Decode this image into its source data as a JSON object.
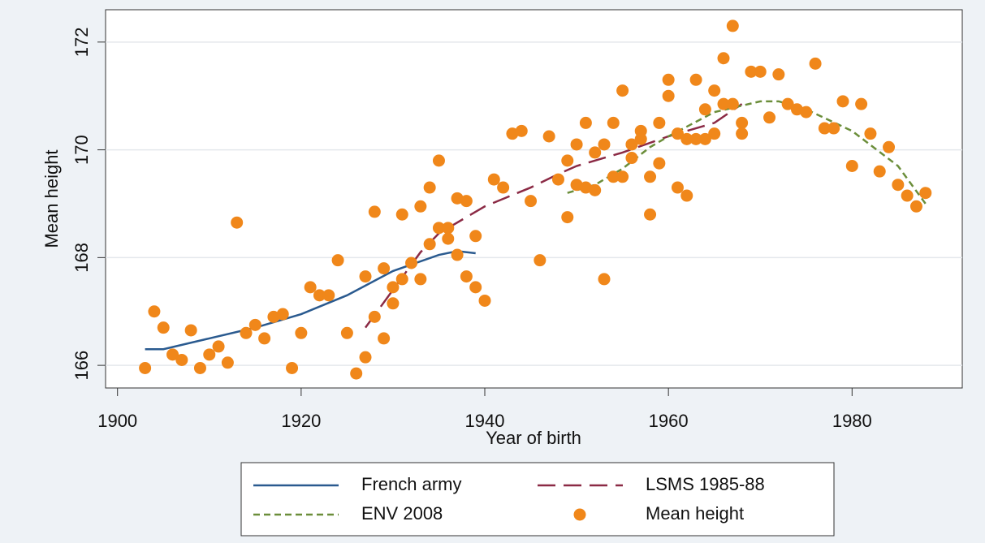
{
  "chart_data": {
    "type": "scatter",
    "x_label": "Year of birth",
    "y_label": "Mean height",
    "xlim": [
      1898.7,
      1992.0
    ],
    "ylim": [
      165.58,
      172.6
    ],
    "xticks": [
      1900,
      1920,
      1940,
      1960,
      1980
    ],
    "yticks": [
      166,
      168,
      170,
      172
    ],
    "grid": true,
    "legend": "bottom",
    "series": [
      {
        "name": "French army",
        "type": "line",
        "dash": "solid",
        "color": "#2a5a8f",
        "x": [
          1903,
          1905,
          1910,
          1915,
          1920,
          1925,
          1930,
          1935,
          1937,
          1939
        ],
        "values": [
          166.3,
          166.3,
          166.5,
          166.7,
          166.95,
          167.3,
          167.75,
          168.05,
          168.12,
          168.08
        ]
      },
      {
        "name": "LSMS 1985-88",
        "type": "line",
        "dash": "long",
        "color": "#8b2a45",
        "x": [
          1927,
          1930,
          1933,
          1935,
          1940,
          1945,
          1948,
          1950,
          1955,
          1960,
          1965,
          1968
        ],
        "values": [
          166.7,
          167.4,
          168.1,
          168.45,
          168.95,
          169.3,
          169.55,
          169.7,
          169.95,
          170.25,
          170.5,
          170.85
        ]
      },
      {
        "name": "ENV 2008",
        "type": "line",
        "dash": "short",
        "color": "#6b8e3a",
        "x": [
          1949,
          1952,
          1955,
          1958,
          1960,
          1965,
          1970,
          1972,
          1975,
          1980,
          1985,
          1988
        ],
        "values": [
          169.2,
          169.35,
          169.65,
          170.05,
          170.25,
          170.7,
          170.9,
          170.9,
          170.75,
          170.35,
          169.7,
          169.0
        ]
      },
      {
        "name": "Mean height",
        "type": "scatter",
        "color": "#f0871a",
        "x": [
          1903,
          1904,
          1905,
          1906,
          1907,
          1908,
          1909,
          1910,
          1911,
          1912,
          1913,
          1914,
          1915,
          1916,
          1917,
          1918,
          1919,
          1920,
          1921,
          1922,
          1923,
          1924,
          1925,
          1926,
          1927,
          1927,
          1928,
          1928,
          1929,
          1929,
          1930,
          1930,
          1931,
          1931,
          1932,
          1933,
          1933,
          1934,
          1934,
          1935,
          1935,
          1936,
          1936,
          1937,
          1937,
          1938,
          1938,
          1939,
          1939,
          1940,
          1941,
          1942,
          1943,
          1944,
          1945,
          1946,
          1947,
          1948,
          1949,
          1949,
          1950,
          1950,
          1951,
          1951,
          1952,
          1952,
          1953,
          1953,
          1954,
          1954,
          1955,
          1955,
          1956,
          1956,
          1957,
          1957,
          1958,
          1958,
          1959,
          1959,
          1960,
          1960,
          1961,
          1961,
          1962,
          1962,
          1963,
          1963,
          1964,
          1964,
          1965,
          1965,
          1966,
          1966,
          1967,
          1967,
          1968,
          1968,
          1969,
          1970,
          1971,
          1972,
          1973,
          1974,
          1975,
          1976,
          1977,
          1978,
          1979,
          1980,
          1981,
          1982,
          1983,
          1984,
          1985,
          1986,
          1987,
          1988
        ],
        "values": [
          165.95,
          167.0,
          166.7,
          166.2,
          166.1,
          166.65,
          165.95,
          166.2,
          166.35,
          166.05,
          168.65,
          166.6,
          166.75,
          166.5,
          166.9,
          166.95,
          165.95,
          166.6,
          167.45,
          167.3,
          167.3,
          167.95,
          166.6,
          165.85,
          166.15,
          167.65,
          166.9,
          168.85,
          167.8,
          166.5,
          167.15,
          167.45,
          168.8,
          167.6,
          167.9,
          167.6,
          168.95,
          169.3,
          168.25,
          169.8,
          168.55,
          168.55,
          168.35,
          169.1,
          168.05,
          169.05,
          167.65,
          168.4,
          167.45,
          167.2,
          169.45,
          169.3,
          170.3,
          170.35,
          169.05,
          167.95,
          170.25,
          169.45,
          169.8,
          168.75,
          170.1,
          169.35,
          170.5,
          169.3,
          169.95,
          169.25,
          170.1,
          167.6,
          170.5,
          169.5,
          171.1,
          169.5,
          170.1,
          169.85,
          170.35,
          170.2,
          169.5,
          168.8,
          170.5,
          169.75,
          171.3,
          171.0,
          170.3,
          169.3,
          170.2,
          169.15,
          171.3,
          170.2,
          170.2,
          170.75,
          171.1,
          170.3,
          171.7,
          170.85,
          172.3,
          170.85,
          170.5,
          170.3,
          171.45,
          171.45,
          170.6,
          171.4,
          170.85,
          170.75,
          170.7,
          171.6,
          170.4,
          170.4,
          170.9,
          169.7,
          170.85,
          170.3,
          169.6,
          170.05,
          169.35,
          169.15,
          168.95,
          169.2
        ]
      }
    ]
  }
}
